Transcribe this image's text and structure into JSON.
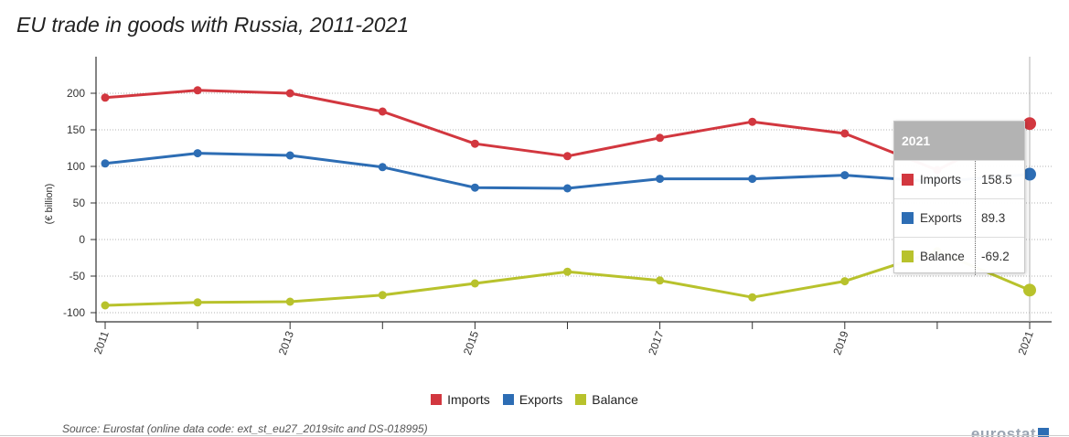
{
  "title": "EU trade in goods with Russia, 2011-2021",
  "source": "Source: Eurostat (online data code: ext_st_eu27_2019sitc and DS-018995)",
  "brand": "eurostat",
  "chart_data": {
    "type": "line",
    "title": "EU trade in goods with Russia, 2011-2021",
    "ylabel": "(€ billion)",
    "xlabel": "",
    "x": [
      2011,
      2012,
      2013,
      2014,
      2015,
      2016,
      2017,
      2018,
      2019,
      2020,
      2021
    ],
    "x_tick_labels": [
      "2011",
      "2013",
      "2015",
      "2017",
      "2019",
      "2021"
    ],
    "y_tick_labels": [
      "200",
      "150",
      "100",
      "50",
      "0",
      "-50",
      "-100"
    ],
    "ylim": [
      -110,
      245
    ],
    "grid": true,
    "legend_position": "bottom",
    "series": [
      {
        "name": "Imports",
        "color": "#d2373f",
        "values": [
          194,
          204,
          200,
          175,
          131,
          114,
          139,
          161,
          145,
          95,
          158.5
        ]
      },
      {
        "name": "Exports",
        "color": "#2d6db4",
        "values": [
          104,
          118,
          115,
          99,
          71,
          70,
          83,
          83,
          88,
          79,
          89.3
        ]
      },
      {
        "name": "Balance",
        "color": "#b8c22c",
        "values": [
          -90,
          -86,
          -85,
          -76,
          -60,
          -44,
          -56,
          -79,
          -57,
          -16,
          -69.2
        ]
      }
    ]
  },
  "tooltip": {
    "header": "2021",
    "rows": [
      {
        "name": "Imports",
        "value": "158.5",
        "color": "#d2373f"
      },
      {
        "name": "Exports",
        "value": "89.3",
        "color": "#2d6db4"
      },
      {
        "name": "Balance",
        "value": "-69.2",
        "color": "#b8c22c"
      }
    ]
  }
}
